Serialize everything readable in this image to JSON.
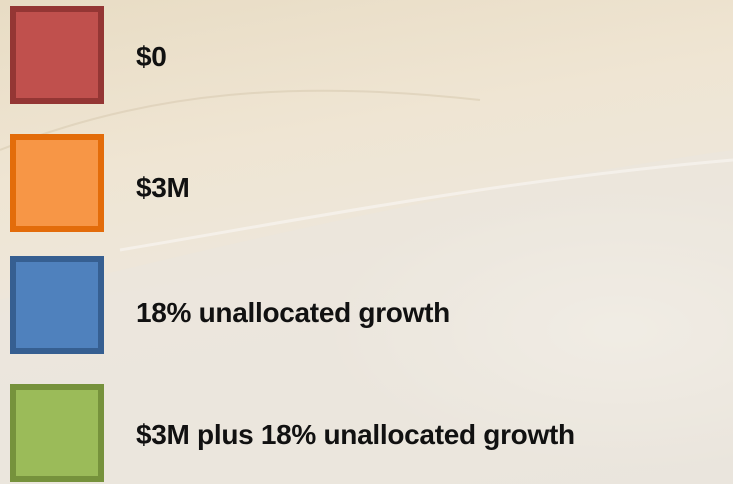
{
  "legend": {
    "items": [
      "$0",
      "$3M",
      "18% unallocated growth",
      "$3M plus 18% unallocated growth"
    ]
  }
}
